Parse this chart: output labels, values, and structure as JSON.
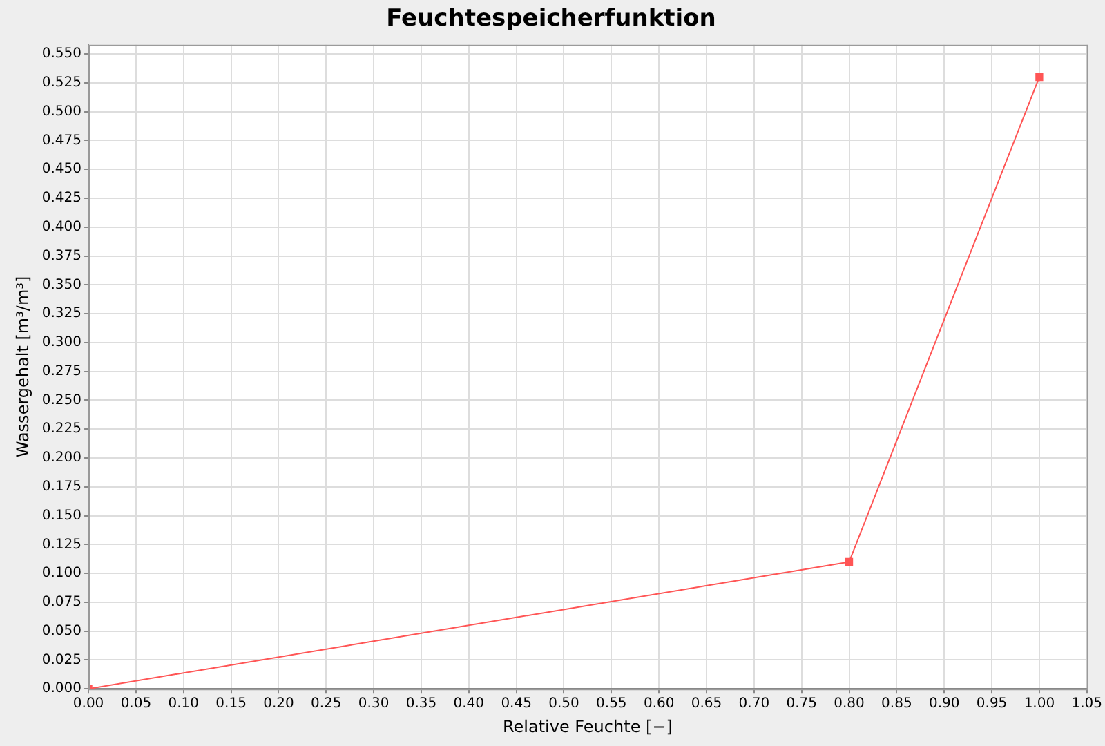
{
  "chart_data": {
    "type": "line",
    "title": "Feuchtespeicherfunktion",
    "xlabel": "Relative Feuchte [−]",
    "ylabel": "Wassergehalt [m³/m³]",
    "x": [
      0,
      0.8,
      1.0
    ],
    "series": [
      {
        "color": "#ff5555",
        "values": [
          0,
          0.11,
          0.53
        ]
      }
    ],
    "xlim": [
      0,
      1.05
    ],
    "ylim": [
      0,
      0.558
    ],
    "xticks": [
      {
        "value": 0,
        "label": "0.00"
      },
      {
        "value": 0.05,
        "label": "0.05"
      },
      {
        "value": 0.1,
        "label": "0.10"
      },
      {
        "value": 0.15,
        "label": "0.15"
      },
      {
        "value": 0.2,
        "label": "0.20"
      },
      {
        "value": 0.25,
        "label": "0.25"
      },
      {
        "value": 0.3,
        "label": "0.30"
      },
      {
        "value": 0.35,
        "label": "0.35"
      },
      {
        "value": 0.4,
        "label": "0.40"
      },
      {
        "value": 0.45,
        "label": "0.45"
      },
      {
        "value": 0.5,
        "label": "0.50"
      },
      {
        "value": 0.55,
        "label": "0.55"
      },
      {
        "value": 0.6,
        "label": "0.60"
      },
      {
        "value": 0.65,
        "label": "0.65"
      },
      {
        "value": 0.7,
        "label": "0.70"
      },
      {
        "value": 0.75,
        "label": "0.75"
      },
      {
        "value": 0.8,
        "label": "0.80"
      },
      {
        "value": 0.85,
        "label": "0.85"
      },
      {
        "value": 0.9,
        "label": "0.90"
      },
      {
        "value": 0.95,
        "label": "0.95"
      },
      {
        "value": 1.0,
        "label": "1.00"
      },
      {
        "value": 1.05,
        "label": "1.05"
      }
    ],
    "yticks": [
      {
        "value": 0,
        "label": "0.000"
      },
      {
        "value": 0.025,
        "label": "0.025"
      },
      {
        "value": 0.05,
        "label": "0.050"
      },
      {
        "value": 0.075,
        "label": "0.075"
      },
      {
        "value": 0.1,
        "label": "0.100"
      },
      {
        "value": 0.125,
        "label": "0.125"
      },
      {
        "value": 0.15,
        "label": "0.150"
      },
      {
        "value": 0.175,
        "label": "0.175"
      },
      {
        "value": 0.2,
        "label": "0.200"
      },
      {
        "value": 0.225,
        "label": "0.225"
      },
      {
        "value": 0.25,
        "label": "0.250"
      },
      {
        "value": 0.275,
        "label": "0.275"
      },
      {
        "value": 0.3,
        "label": "0.300"
      },
      {
        "value": 0.325,
        "label": "0.325"
      },
      {
        "value": 0.35,
        "label": "0.350"
      },
      {
        "value": 0.375,
        "label": "0.375"
      },
      {
        "value": 0.4,
        "label": "0.400"
      },
      {
        "value": 0.425,
        "label": "0.425"
      },
      {
        "value": 0.45,
        "label": "0.450"
      },
      {
        "value": 0.475,
        "label": "0.475"
      },
      {
        "value": 0.5,
        "label": "0.500"
      },
      {
        "value": 0.525,
        "label": "0.525"
      },
      {
        "value": 0.55,
        "label": "0.550"
      }
    ],
    "grid": true,
    "legend": false,
    "marker": "square",
    "line_style": "solid"
  }
}
